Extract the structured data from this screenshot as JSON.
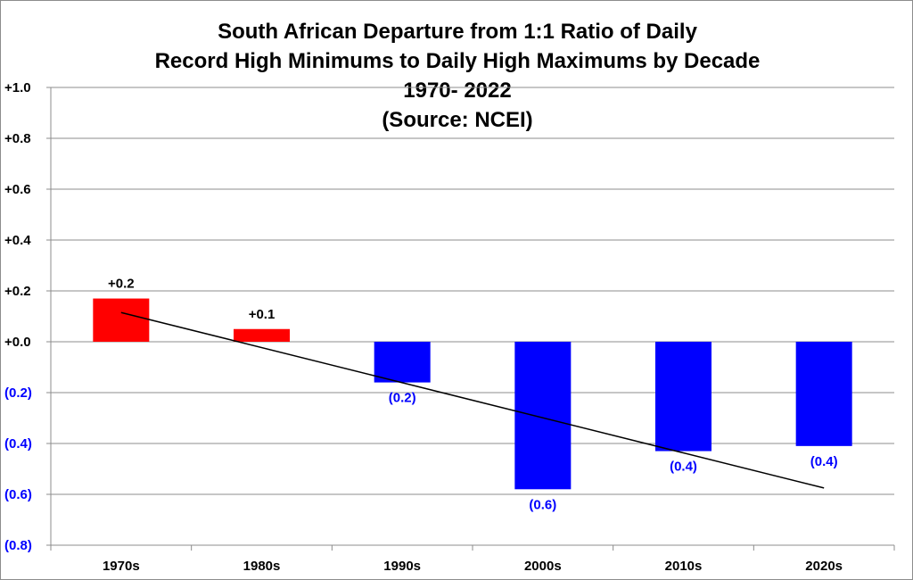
{
  "chart_data": {
    "type": "bar",
    "title_lines": [
      "South African Departure from 1:1 Ratio of Daily",
      "Record High Minimums to Daily High Maximums by Decade",
      "1970- 2022",
      "(Source: NCEI)"
    ],
    "categories": [
      "1970s",
      "1980s",
      "1990s",
      "2000s",
      "2010s",
      "2020s"
    ],
    "values": [
      0.17,
      0.05,
      -0.16,
      -0.58,
      -0.43,
      -0.41
    ],
    "data_labels": [
      "+0.2",
      "+0.1",
      "(0.2)",
      "(0.6)",
      "(0.4)",
      "(0.4)"
    ],
    "ylim": [
      -0.8,
      1.0
    ],
    "y_ticks": [
      1.0,
      0.8,
      0.6,
      0.4,
      0.2,
      0.0,
      -0.2,
      -0.4,
      -0.6,
      -0.8
    ],
    "y_tick_labels": [
      "+1.0",
      "+0.8",
      "+0.6",
      "+0.4",
      "+0.2",
      "+0.0",
      "(0.2)",
      "(0.4)",
      "(0.6)",
      "(0.8)"
    ],
    "trendline": {
      "start": 0.115,
      "end": -0.575
    },
    "grid": true,
    "legend": "none",
    "colors": {
      "positive": "#ff0000",
      "negative": "#0000ff",
      "positive_text": "#000000",
      "negative_text": "#0000ff",
      "grid": "#8c8c8c",
      "trend": "#000000"
    }
  }
}
